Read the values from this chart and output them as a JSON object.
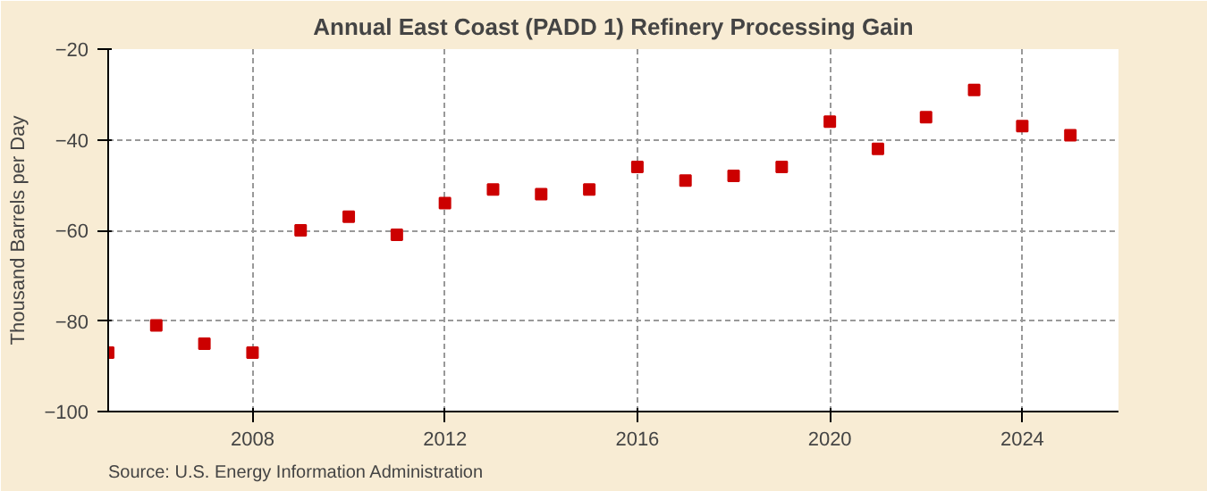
{
  "chart_data": {
    "type": "scatter",
    "title": "Annual East Coast (PADD 1) Refinery Processing Gain",
    "ylabel": "Thousand Barrels per Day",
    "annotations": [
      "Source: U.S. Energy Information Administration"
    ],
    "x": [
      2005,
      2006,
      2007,
      2008,
      2009,
      2010,
      2011,
      2012,
      2013,
      2014,
      2015,
      2016,
      2017,
      2018,
      2019,
      2020,
      2021,
      2022,
      2023,
      2024,
      2025
    ],
    "series": [
      {
        "color": "#cc0000",
        "values": [
          -87,
          -81,
          -85,
          -87,
          -60,
          -57,
          -61,
          -54,
          -51,
          -52,
          -51,
          -46,
          -49,
          -48,
          -46,
          -36,
          -42,
          -35,
          -29,
          -37,
          -39
        ]
      }
    ],
    "xlim": [
      2005,
      2026
    ],
    "xticks": [
      2008,
      2012,
      2016,
      2020,
      2024
    ],
    "ylim": [
      -100,
      -20
    ],
    "yticks": [
      -100,
      -80,
      -60,
      -40,
      -20
    ],
    "grid": true,
    "marker": "square"
  }
}
